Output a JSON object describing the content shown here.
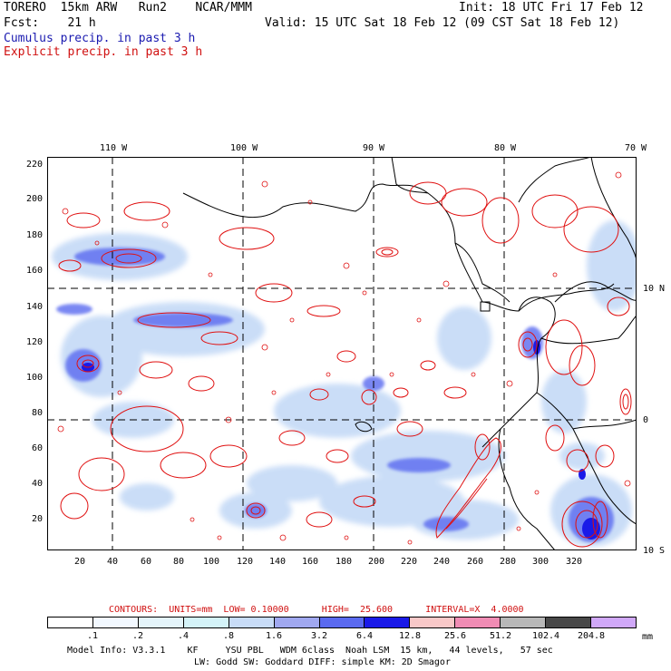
{
  "header": {
    "model_line": "TORERO  15km ARW   Run2    NCAR/MMM",
    "init": "Init: 18 UTC Fri 17 Feb 12",
    "fcst": "Fcst:    21 h",
    "valid": "Valid: 15 UTC Sat 18 Feb 12 (09 CST Sat 18 Feb 12)",
    "cumulus_label": "Cumulus precip. in past 3 h",
    "explicit_label": "Explicit precip. in past 3 h"
  },
  "colors": {
    "cumulus": "#1a1ab0",
    "explicit": "#d01010",
    "grid": "#000000"
  },
  "map": {
    "lon_labels": [
      "110 W",
      "100 W",
      "90 W",
      "80 W",
      "70 W"
    ],
    "lat_labels": [
      "10 N",
      "0",
      "10 S"
    ],
    "y_ticks": [
      "220",
      "200",
      "180",
      "160",
      "140",
      "120",
      "100",
      "80",
      "60",
      "40",
      "20"
    ],
    "x_ticks": [
      "20",
      "40",
      "60",
      "80",
      "100",
      "120",
      "140",
      "160",
      "180",
      "200",
      "220",
      "240",
      "260",
      "280",
      "300",
      "320"
    ]
  },
  "contours_info": "CONTOURS:  UNITS=mm  LOW= 0.10000      HIGH=  25.600      INTERVAL=X  4.0000",
  "legend": {
    "values": [
      ".1",
      ".2",
      ".4",
      ".8",
      "1.6",
      "3.2",
      "6.4",
      "12.8",
      "25.6",
      "51.2",
      "102.4",
      "204.8"
    ],
    "unit": "mm",
    "colors": [
      "#ffffff",
      "#f2f8ff",
      "#e4f4fa",
      "#d4f3f8",
      "#c8dcf7",
      "#a0a8f0",
      "#5a6af0",
      "#1a1ae8",
      "#f8c8c8",
      "#f08cb4",
      "#b8b8b8",
      "#484848",
      "#d0a8f8"
    ]
  },
  "footer": {
    "line1": "Model Info: V3.3.1    KF     YSU PBL   WDM 6class  Noah LSM  15 km,   44 levels,   57 sec",
    "line2": "LW: Godd SW: Goddard DIFF: simple KM: 2D Smagor"
  }
}
